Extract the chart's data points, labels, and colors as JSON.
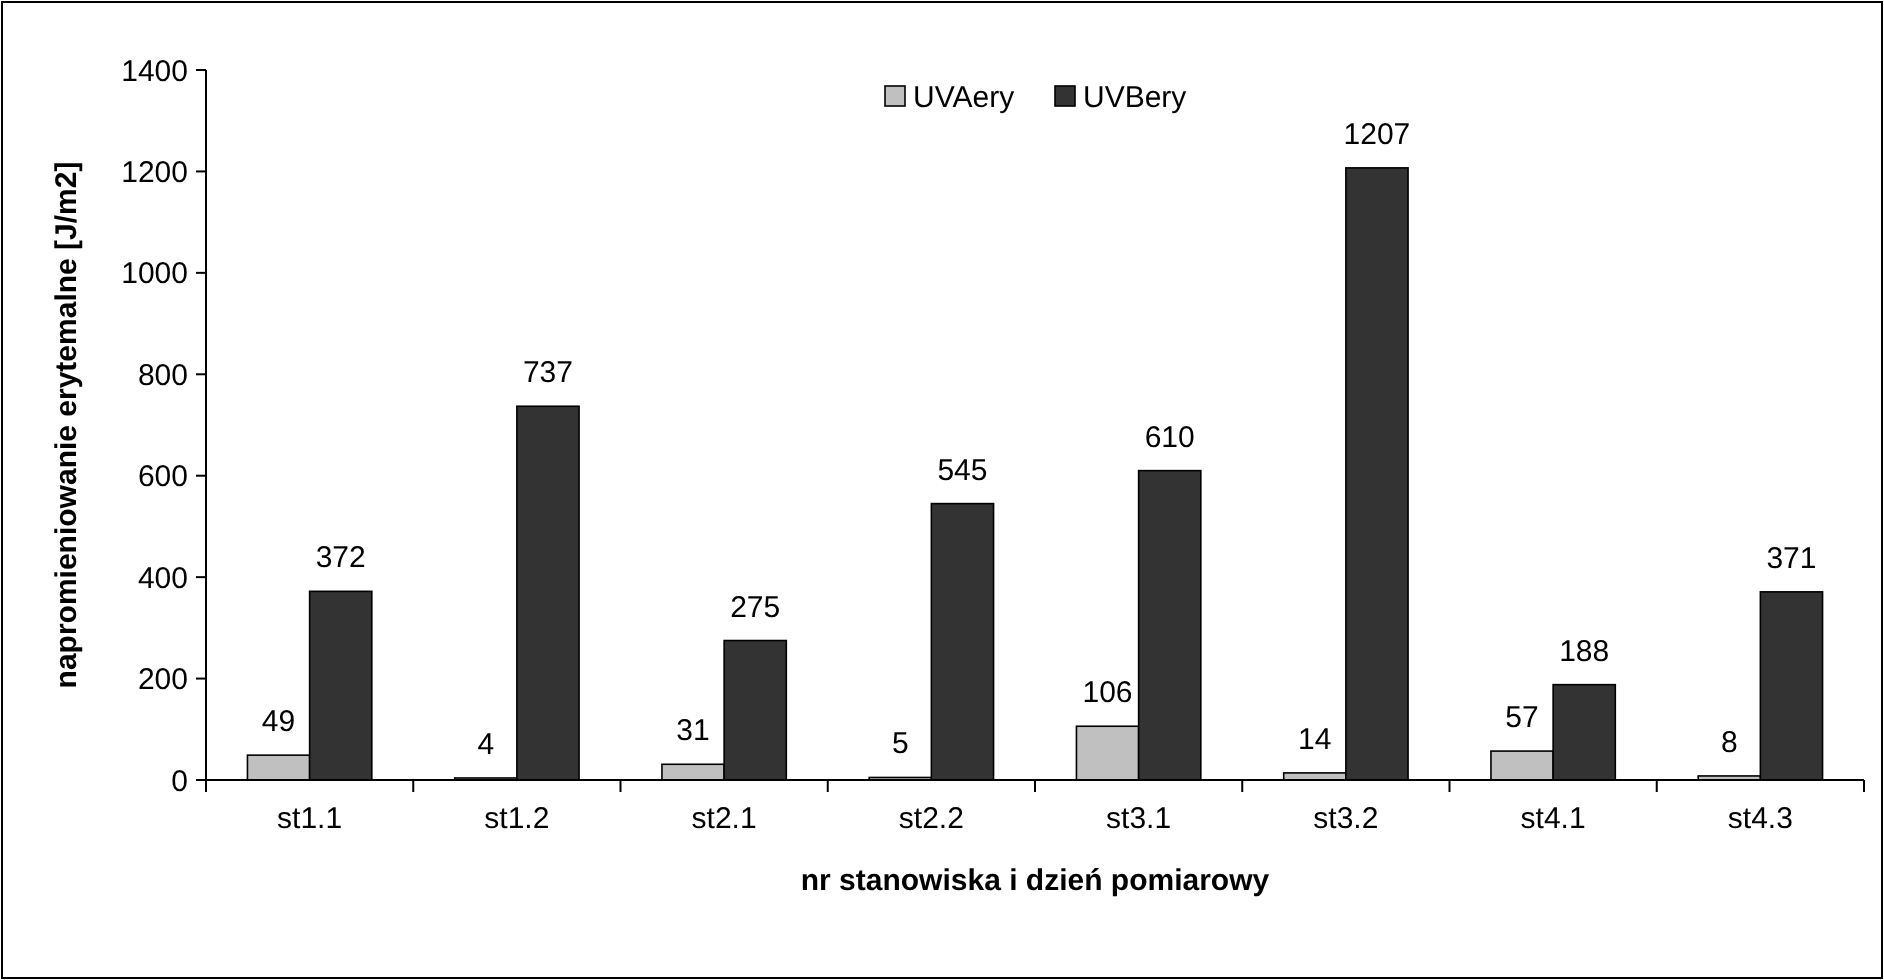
{
  "chart_data": {
    "type": "bar",
    "xlabel": "nr stanowiska i dzień pomiarowy",
    "ylabel": "napromieniowanie erytemalne [J/m2]",
    "categories": [
      "st1.1",
      "st1.2",
      "st2.1",
      "st2.2",
      "st3.1",
      "st3.2",
      "st4.1",
      "st4.3"
    ],
    "series": [
      {
        "name": "UVAery",
        "color": "#c0c0c0",
        "values": [
          49,
          4,
          31,
          5,
          106,
          14,
          57,
          8
        ]
      },
      {
        "name": "UVBery",
        "color": "#333333",
        "values": [
          372,
          737,
          275,
          545,
          610,
          1207,
          188,
          371
        ]
      }
    ],
    "ylim": [
      0,
      1400
    ],
    "yticks": [
      0,
      200,
      400,
      600,
      800,
      1000,
      1200,
      1400
    ],
    "data_labels": true,
    "legend": "top",
    "grid": false
  }
}
